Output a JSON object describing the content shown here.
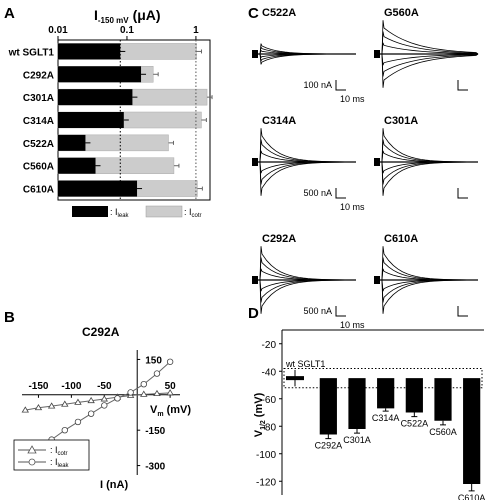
{
  "chart_data": [
    {
      "panel": "A",
      "type": "bar",
      "orientation": "horizontal",
      "scale": "log",
      "axis_label": "I",
      "axis_sub": "-150 mV",
      "axis_unit": "(μA)",
      "xlim": [
        0.01,
        1.6
      ],
      "ticks": [
        {
          "value": 0.01,
          "label": "0.01"
        },
        {
          "value": 0.1,
          "label": "0.1"
        },
        {
          "value": 1,
          "label": "1"
        }
      ],
      "categories": [
        "wt SGLT1",
        "C292A",
        "C301A",
        "C314A",
        "C522A",
        "C560A",
        "C610A"
      ],
      "series": [
        {
          "name": "I",
          "sub": "leak",
          "color": "#000000",
          "values": [
            0.08,
            0.16,
            0.12,
            0.09,
            0.025,
            0.035,
            0.14
          ]
        },
        {
          "name": "I",
          "sub": "cotr",
          "color": "#cccccc",
          "values": [
            1.02,
            0.24,
            1.45,
            1.2,
            0.4,
            0.48,
            1.05
          ]
        }
      ],
      "dotted_ref": 0.08,
      "legend_sep": ": "
    },
    {
      "panel": "B",
      "type": "line",
      "title": "C292A",
      "xlabel": "I (nA)",
      "ylabel_name": "V",
      "ylabel_sub": "m",
      "ylabel_unit": "(mV)",
      "note": "axes: horizontal axis = membrane potential (mV), vertical axis = current (nA)",
      "x_ticks": [
        "-150",
        "-100",
        "-50",
        "50"
      ],
      "x_tick_values": [
        -150,
        -100,
        -50,
        50
      ],
      "y_ticks": [
        "150",
        "-150",
        "-300"
      ],
      "y_tick_values": [
        150,
        -150,
        -300
      ],
      "xlim": [
        -175,
        65
      ],
      "ylim": [
        -340,
        190
      ],
      "series": [
        {
          "name": "I",
          "sub": "cotr",
          "marker": "triangle",
          "x": [
            -170,
            -150,
            -130,
            -110,
            -90,
            -70,
            -50,
            -30,
            -10,
            10,
            30,
            50
          ],
          "y": [
            -65,
            -55,
            -48,
            -40,
            -32,
            -25,
            -18,
            -10,
            -3,
            2,
            5,
            8
          ]
        },
        {
          "name": "I",
          "sub": "leak",
          "marker": "circle",
          "x": [
            -170,
            -150,
            -130,
            -110,
            -90,
            -70,
            -50,
            -30,
            -10,
            10,
            30,
            50
          ],
          "y": [
            -270,
            -230,
            -190,
            -150,
            -115,
            -80,
            -45,
            -15,
            10,
            45,
            90,
            140
          ]
        }
      ],
      "legend_sep": ": "
    },
    {
      "panel": "C",
      "type": "traces",
      "items": [
        {
          "name": "C522A",
          "scale": "100 nA",
          "time": "10 ms"
        },
        {
          "name": "G560A",
          "scale": "",
          "time": ""
        },
        {
          "name": "C314A",
          "scale": "500 nA",
          "time": "10 ms"
        },
        {
          "name": "C301A",
          "scale": "",
          "time": ""
        },
        {
          "name": "C292A",
          "scale": "500 nA",
          "time": "10 ms"
        },
        {
          "name": "C610A",
          "scale": "",
          "time": ""
        }
      ]
    },
    {
      "panel": "D",
      "type": "bar",
      "ylabel_name": "V",
      "ylabel_sub": "1/2",
      "ylabel_unit": "(mV)",
      "ylim": [
        -130,
        -10
      ],
      "y_ticks": [
        -20,
        -40,
        -60,
        -80,
        -100,
        -120
      ],
      "reference": {
        "name": "wt SGLT1",
        "value": -45,
        "error": 6
      },
      "categories": [
        "C292A",
        "C301A",
        "C314A",
        "C522A",
        "C560A",
        "C610A"
      ],
      "values": [
        -86,
        -82,
        -67,
        -70,
        -76,
        -122
      ],
      "errors": [
        3,
        3,
        2,
        3,
        3,
        5
      ],
      "dotted_band": [
        -38,
        -52
      ]
    }
  ],
  "panel_letters": [
    "A",
    "B",
    "C",
    "D"
  ]
}
